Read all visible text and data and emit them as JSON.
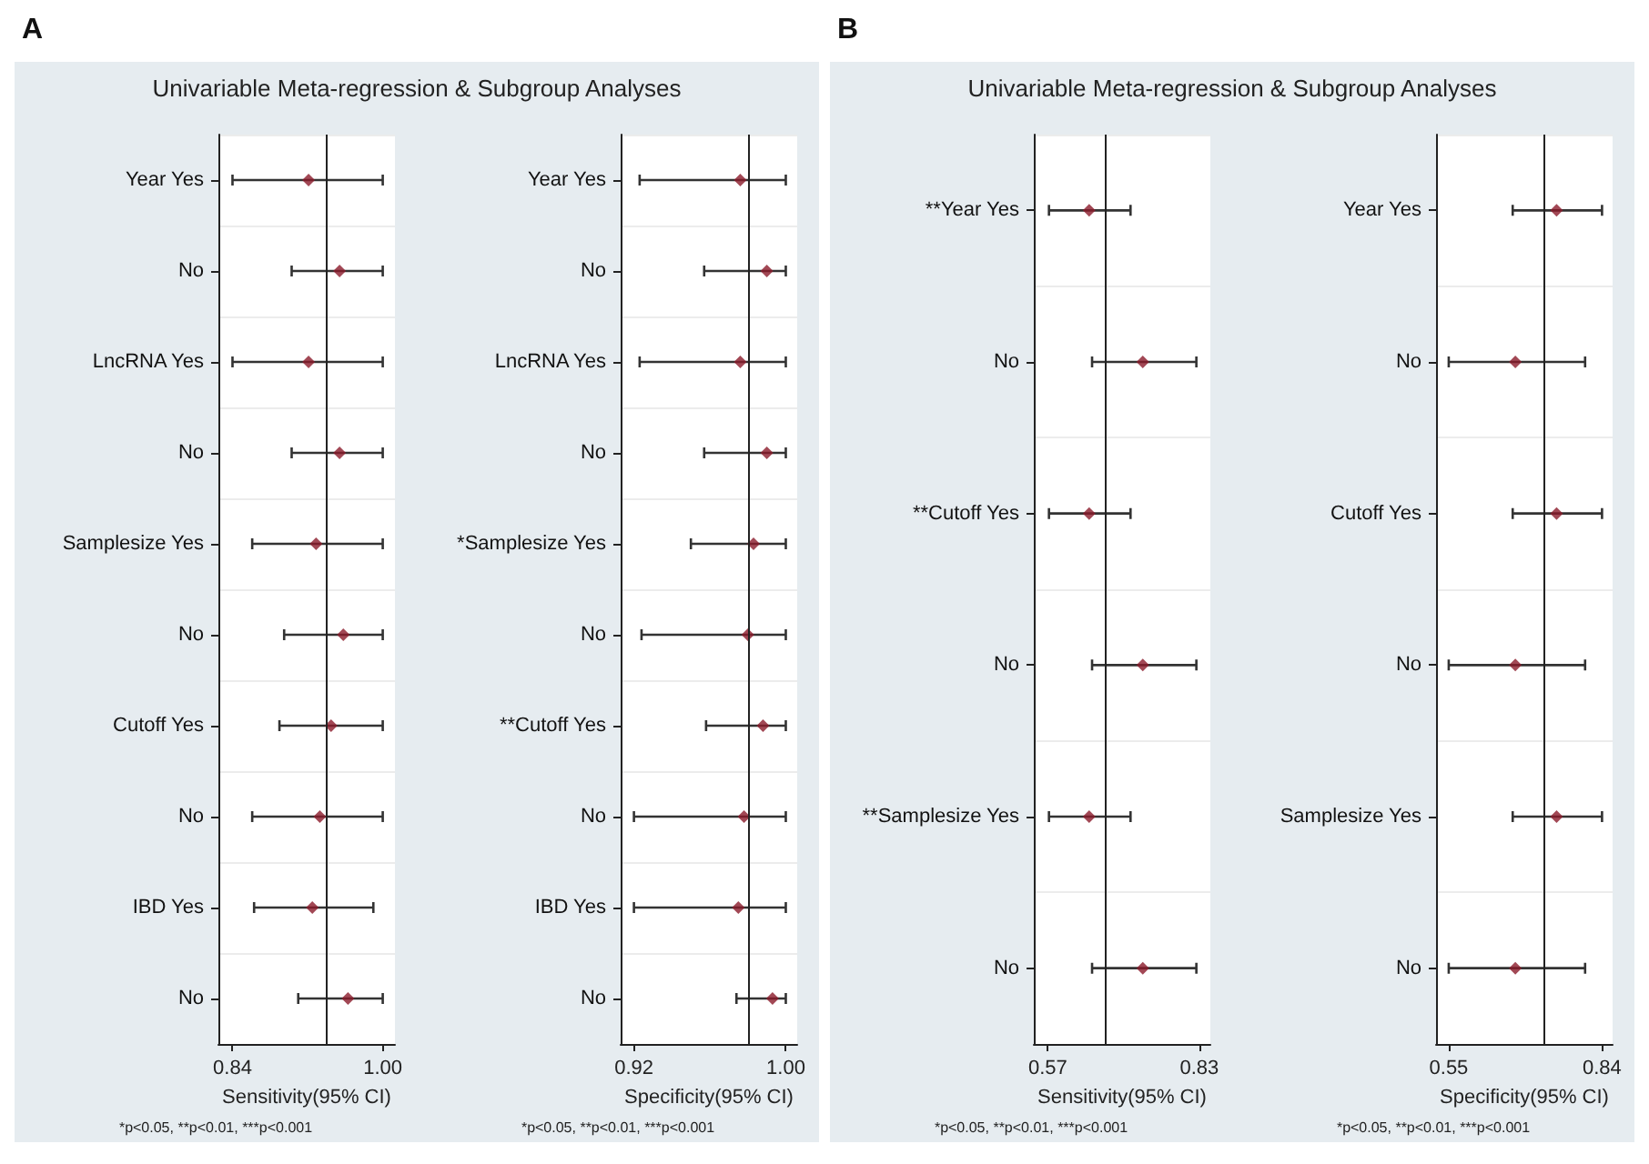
{
  "chart_data": [
    {
      "type": "scatter",
      "orientation": "horizontal",
      "title": "A",
      "subtitle": "Univariable Meta-regression & Subgroup Analyses",
      "xlabel": "Sensitivity(95% CI)",
      "annotations": [
        "*p<0.05, **p<0.01, ***p<0.001"
      ],
      "categories": [
        "Year Yes",
        "No",
        "LncRNA Yes",
        "No",
        "Samplesize Yes",
        "No",
        "Cutoff Yes",
        "No",
        "IBD Yes",
        "No"
      ],
      "series": [
        {
          "color": "#8b1a2b",
          "values": [
            0.921,
            0.954,
            0.921,
            0.954,
            0.929,
            0.958,
            0.945,
            0.933,
            0.925,
            0.963
          ],
          "errors": [
            [
              0.84,
              1.0
            ],
            [
              0.903,
              1.0
            ],
            [
              0.84,
              1.0
            ],
            [
              0.903,
              1.0
            ],
            [
              0.861,
              1.0
            ],
            [
              0.895,
              1.0
            ],
            [
              0.89,
              1.0
            ],
            [
              0.861,
              1.0
            ],
            [
              0.863,
              0.99
            ],
            [
              0.91,
              1.0
            ]
          ]
        }
      ],
      "xlim": [
        0.825,
        1.013
      ],
      "xticks": [
        0.84,
        {
          "value": 1,
          "label": "1.00"
        }
      ],
      "ref_lines": [
        {
          "axis": "x",
          "value": 0.941
        }
      ],
      "grid": "y",
      "marker": "diamond"
    },
    {
      "type": "scatter",
      "orientation": "horizontal",
      "xlabel": "Specificity(95% CI)",
      "annotations": [
        "*p<0.05, **p<0.01, ***p<0.001"
      ],
      "categories": [
        "Year Yes",
        "No",
        "LncRNA Yes",
        "No",
        "*Samplesize Yes",
        "No",
        "**Cutoff Yes",
        "No",
        "IBD Yes",
        "No"
      ],
      "series": [
        {
          "color": "#8b1a2b",
          "values": [
            0.976,
            0.99,
            0.976,
            0.99,
            0.983,
            0.98,
            0.988,
            0.978,
            0.975,
            0.993
          ],
          "errors": [
            [
              0.923,
              1.0
            ],
            [
              0.957,
              1.0
            ],
            [
              0.923,
              1.0
            ],
            [
              0.957,
              1.0
            ],
            [
              0.95,
              1.0
            ],
            [
              0.924,
              1.0
            ],
            [
              0.958,
              1.0
            ],
            [
              0.92,
              1.0
            ],
            [
              0.92,
              1.0
            ],
            [
              0.974,
              1.0
            ]
          ]
        }
      ],
      "xlim": [
        0.913,
        1.006
      ],
      "xticks": [
        0.92,
        {
          "value": 1,
          "label": "1.00"
        }
      ],
      "ref_lines": [
        {
          "axis": "x",
          "value": 0.981
        }
      ],
      "grid": "y",
      "marker": "diamond"
    },
    {
      "type": "scatter",
      "orientation": "horizontal",
      "title": "B",
      "subtitle": "Univariable Meta-regression & Subgroup Analyses",
      "xlabel": "Sensitivity(95% CI)",
      "annotations": [
        "*p<0.05, **p<0.01, ***p<0.001"
      ],
      "categories": [
        "**Year Yes",
        "No",
        "**Cutoff Yes",
        "No",
        "**Samplesize Yes",
        "No"
      ],
      "series": [
        {
          "color": "#8b1a2b",
          "values": [
            0.641,
            0.733,
            0.641,
            0.733,
            0.641,
            0.733
          ],
          "errors": [
            [
              0.572,
              0.712
            ],
            [
              0.646,
              0.825
            ],
            [
              0.572,
              0.712
            ],
            [
              0.646,
              0.825
            ],
            [
              0.572,
              0.712
            ],
            [
              0.646,
              0.825
            ]
          ]
        }
      ],
      "xlim": [
        0.546,
        0.849
      ],
      "xticks": [
        0.57,
        0.83
      ],
      "ref_lines": [
        {
          "axis": "x",
          "value": 0.669
        }
      ],
      "grid": "y",
      "marker": "diamond"
    },
    {
      "type": "scatter",
      "orientation": "horizontal",
      "xlabel": "Specificity(95% CI)",
      "annotations": [
        "*p<0.05, **p<0.01, ***p<0.001"
      ],
      "categories": [
        "Year Yes",
        "No",
        "Cutoff Yes",
        "No",
        "Samplesize Yes",
        "No"
      ],
      "series": [
        {
          "color": "#8b1a2b",
          "values": [
            0.754,
            0.676,
            0.754,
            0.676,
            0.754,
            0.676
          ],
          "errors": [
            [
              0.671,
              0.84
            ],
            [
              0.55,
              0.808
            ],
            [
              0.671,
              0.84
            ],
            [
              0.55,
              0.808
            ],
            [
              0.671,
              0.84
            ],
            [
              0.55,
              0.808
            ]
          ]
        }
      ],
      "xlim": [
        0.526,
        0.86
      ],
      "xticks": [
        0.55,
        0.84
      ],
      "ref_lines": [
        {
          "axis": "x",
          "value": 0.727
        }
      ],
      "grid": "y",
      "marker": "diamond"
    }
  ]
}
